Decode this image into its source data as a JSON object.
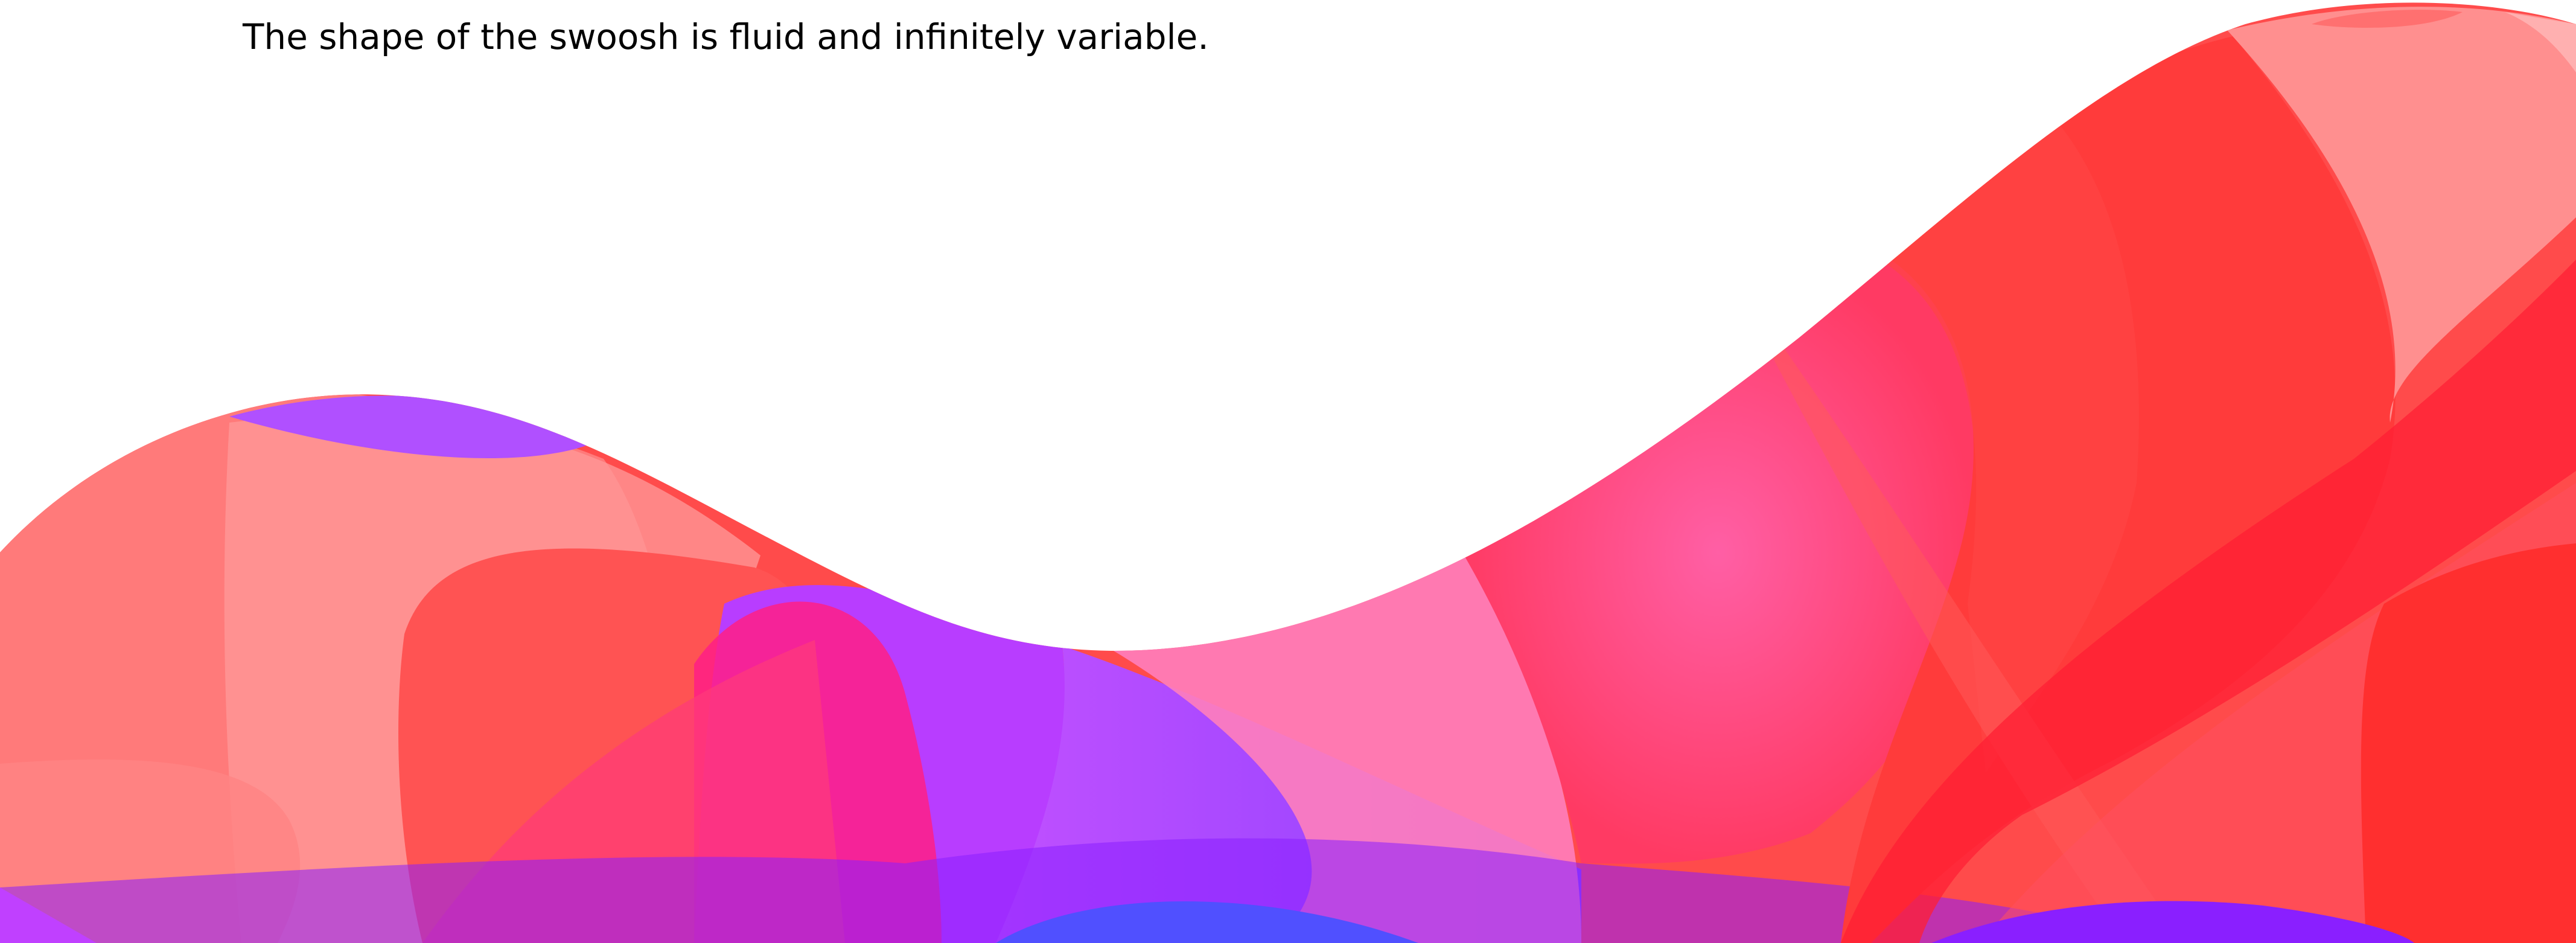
{
  "caption": {
    "text": "The shape of the swoosh is fluid and infinitely variable."
  },
  "colors": {
    "background": "#ffffff",
    "text": "#000000",
    "red": "#ff2f2f",
    "coral": "#ff6b6b",
    "pink": "#ff5aa0",
    "magenta": "#ff1f7a",
    "purple": "#b040ff",
    "violet": "#8a1fff",
    "blue": "#5050ff"
  }
}
